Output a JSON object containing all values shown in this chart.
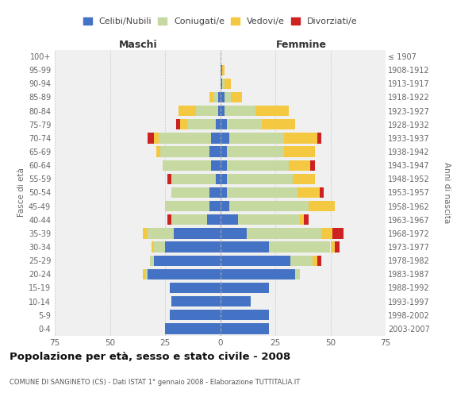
{
  "age_groups": [
    "0-4",
    "5-9",
    "10-14",
    "15-19",
    "20-24",
    "25-29",
    "30-34",
    "35-39",
    "40-44",
    "45-49",
    "50-54",
    "55-59",
    "60-64",
    "65-69",
    "70-74",
    "75-79",
    "80-84",
    "85-89",
    "90-94",
    "95-99",
    "100+"
  ],
  "birth_years": [
    "2003-2007",
    "1998-2002",
    "1993-1997",
    "1988-1992",
    "1983-1987",
    "1978-1982",
    "1973-1977",
    "1968-1972",
    "1963-1967",
    "1958-1962",
    "1953-1957",
    "1948-1952",
    "1943-1947",
    "1938-1942",
    "1933-1937",
    "1928-1932",
    "1923-1927",
    "1918-1922",
    "1913-1917",
    "1908-1912",
    "≤ 1907"
  ],
  "colors": {
    "celibe": "#4472C4",
    "coniugato": "#C5D9A0",
    "vedovo": "#F5C842",
    "divorziato": "#CC2222",
    "background": "#F0F0F0"
  },
  "maschi": {
    "celibe": [
      25,
      23,
      22,
      23,
      33,
      30,
      25,
      21,
      6,
      5,
      5,
      2,
      4,
      5,
      4,
      2,
      1,
      1,
      0,
      0,
      0
    ],
    "coniugato": [
      0,
      0,
      0,
      0,
      1,
      2,
      5,
      12,
      16,
      20,
      17,
      20,
      22,
      22,
      24,
      13,
      10,
      2,
      0,
      0,
      0
    ],
    "vedovo": [
      0,
      0,
      0,
      0,
      1,
      0,
      1,
      2,
      0,
      0,
      0,
      0,
      0,
      2,
      2,
      3,
      8,
      2,
      0,
      0,
      0
    ],
    "divorziato": [
      0,
      0,
      0,
      0,
      0,
      0,
      0,
      0,
      2,
      0,
      0,
      2,
      0,
      0,
      3,
      2,
      0,
      0,
      0,
      0,
      0
    ]
  },
  "femmine": {
    "nubile": [
      22,
      22,
      14,
      22,
      34,
      32,
      22,
      12,
      8,
      4,
      3,
      3,
      3,
      3,
      4,
      3,
      2,
      2,
      1,
      1,
      0
    ],
    "coniugata": [
      0,
      0,
      0,
      0,
      2,
      10,
      28,
      34,
      28,
      36,
      32,
      30,
      28,
      26,
      25,
      16,
      14,
      3,
      1,
      0,
      0
    ],
    "vedova": [
      0,
      0,
      0,
      0,
      0,
      2,
      2,
      5,
      2,
      12,
      10,
      10,
      10,
      14,
      15,
      15,
      15,
      5,
      3,
      1,
      0
    ],
    "divorziata": [
      0,
      0,
      0,
      0,
      0,
      2,
      2,
      5,
      2,
      0,
      2,
      0,
      2,
      0,
      2,
      0,
      0,
      0,
      0,
      0,
      0
    ]
  },
  "title": "Popolazione per età, sesso e stato civile - 2008",
  "subtitle": "COMUNE DI SANGINETO (CS) - Dati ISTAT 1° gennaio 2008 - Elaborazione TUTTITALIA.IT",
  "xlabel_left": "Maschi",
  "xlabel_right": "Femmine",
  "ylabel_left": "Fasce di età",
  "ylabel_right": "Anni di nascita",
  "xlim": 75,
  "legend_labels": [
    "Celibi/Nubili",
    "Coniugati/e",
    "Vedovi/e",
    "Divorziati/e"
  ]
}
